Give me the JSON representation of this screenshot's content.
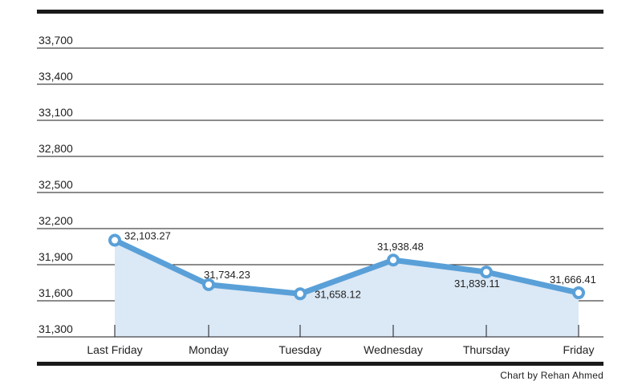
{
  "chart_data": {
    "type": "area",
    "categories": [
      "Last Friday",
      "Monday",
      "Tuesday",
      "Wednesday",
      "Thursday",
      "Friday"
    ],
    "values": [
      32103.27,
      31734.23,
      31658.12,
      31938.48,
      31839.11,
      31666.41
    ],
    "data_labels": [
      "32,103.27",
      "31,734.23",
      "31,658.12",
      "31,938.48",
      "31,839.11",
      "31,666.41"
    ],
    "yticks": [
      31300,
      31600,
      31900,
      32200,
      32500,
      32800,
      33100,
      33400,
      33700
    ],
    "ytick_labels": [
      "31,300",
      "31,600",
      "31,900",
      "32,200",
      "32,500",
      "32,800",
      "33,100",
      "33,400",
      "33,700"
    ],
    "ylim": [
      31300,
      33700
    ],
    "grid": true,
    "colors": {
      "line": "#5aa0d8",
      "fill": "#dbe8f6",
      "axis": "#1a1a1a"
    }
  },
  "credit": "Chart by Rehan Ahmed"
}
